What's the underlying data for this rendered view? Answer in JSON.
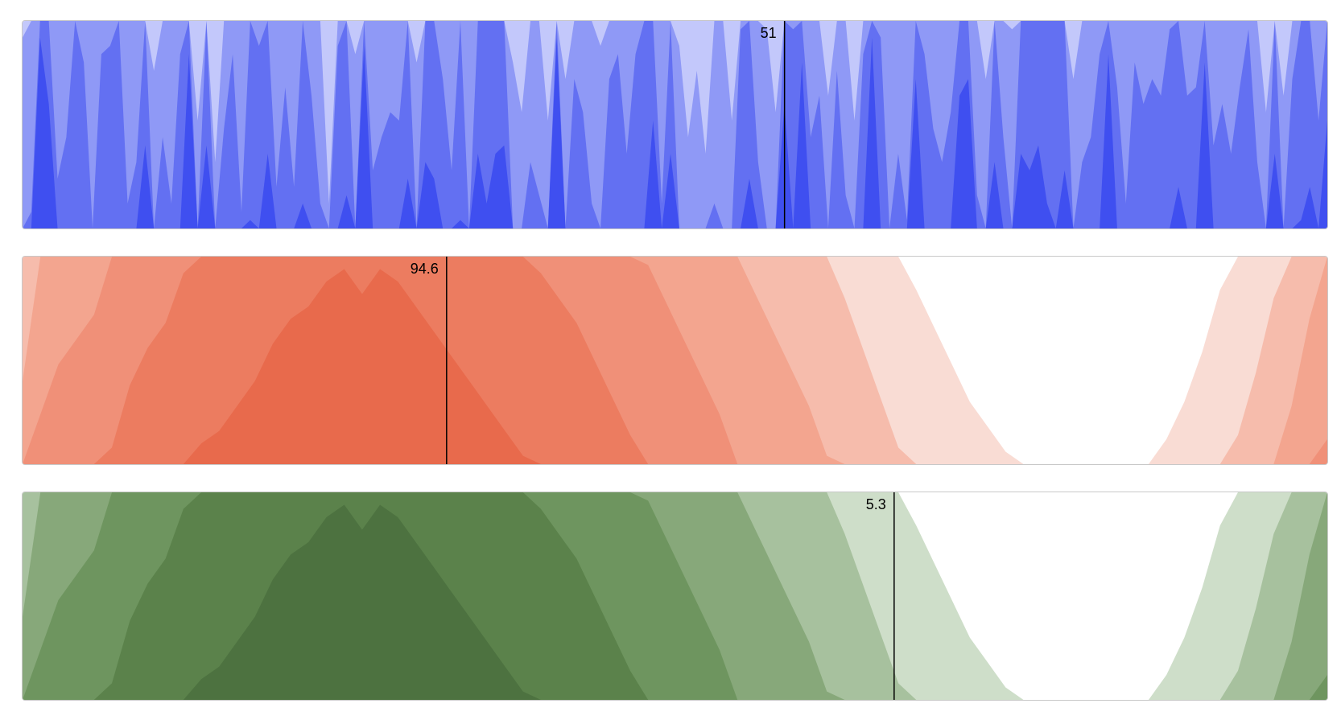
{
  "chart_data": [
    {
      "type": "area",
      "chart_kind": "horizon",
      "bands": 4,
      "color": "#3f4ff0",
      "band_colors": [
        "#c3c8fb",
        "#8f99f6",
        "#6370f2",
        "#3f4ff0"
      ],
      "ylim": [
        0,
        100
      ],
      "rule": {
        "position": 0.584,
        "label": "51"
      },
      "values": [
        48,
        52,
        98,
        90,
        56,
        61,
        75,
        70,
        50,
        71,
        72,
        75,
        53,
        58,
        85,
        44,
        61,
        53,
        71,
        96,
        38,
        85,
        33,
        62,
        71,
        52,
        76,
        72,
        84,
        55,
        67,
        55,
        78,
        66,
        53,
        28,
        72,
        79,
        46,
        97,
        57,
        61,
        64,
        63,
        81,
        45,
        83,
        81,
        68,
        57,
        76,
        50,
        84,
        78,
        84,
        85,
        45,
        39,
        58,
        54,
        38,
        98,
        43,
        68,
        64,
        53,
        47,
        68,
        71,
        59,
        71,
        75,
        88,
        53,
        84,
        47,
        36,
        44,
        34,
        53,
        50,
        38,
        74,
        81,
        58,
        49,
        39,
        90,
        74,
        95,
        61,
        66,
        41,
        69,
        54,
        38,
        71,
        98,
        73,
        50,
        59,
        51,
        93,
        71,
        62,
        58,
        64,
        91,
        93,
        54,
        43,
        83,
        61,
        49,
        84,
        82,
        85,
        78,
        75,
        82,
        43,
        58,
        61,
        71,
        96,
        67,
        53,
        70,
        65,
        68,
        66,
        74,
        80,
        66,
        67,
        95,
        60,
        65,
        59,
        67,
        74,
        58,
        39,
        84,
        41,
        68,
        76,
        80,
        63,
        88
      ]
    },
    {
      "type": "area",
      "chart_kind": "horizon",
      "bands": 6,
      "color": "#eb7a5e",
      "band_colors": [
        "#f9dcd4",
        "#f6bcac",
        "#f3a58f",
        "#f09078",
        "#ec7c60",
        "#e86a4c"
      ],
      "ylim": [
        0,
        100
      ],
      "rule": {
        "position": 0.325,
        "label": "94.6"
      },
      "values": [
        40,
        54,
        58,
        60,
        62,
        68,
        73,
        76,
        78,
        82,
        85,
        86,
        88,
        90,
        93,
        95,
        96,
        98,
        99,
        97,
        99,
        98,
        96,
        94,
        92,
        90,
        88,
        86,
        84,
        82,
        80,
        78,
        75,
        72,
        69,
        66,
        63,
        60,
        57,
        54,
        50,
        47,
        44,
        41,
        38,
        34,
        30,
        26,
        22,
        18,
        14,
        11,
        8,
        5,
        3,
        1,
        0,
        0,
        0,
        0,
        0,
        0,
        0,
        0,
        2,
        5,
        9,
        14,
        19,
        24,
        30,
        38,
        45,
        52
      ]
    },
    {
      "type": "area",
      "chart_kind": "horizon",
      "bands": 6,
      "color": "#5b824b",
      "band_colors": [
        "#cedec9",
        "#a7c19e",
        "#87a87a",
        "#6e955f",
        "#5b824b",
        "#4d7240"
      ],
      "ylim": [
        0,
        100
      ],
      "rule": {
        "position": 0.668,
        "label": "5.3"
      },
      "values": [
        40,
        54,
        58,
        60,
        62,
        68,
        73,
        76,
        78,
        82,
        85,
        86,
        88,
        90,
        93,
        95,
        96,
        98,
        99,
        97,
        99,
        98,
        96,
        94,
        92,
        90,
        88,
        86,
        84,
        82,
        80,
        78,
        75,
        72,
        69,
        66,
        63,
        60,
        57,
        54,
        50,
        47,
        44,
        41,
        38,
        34,
        30,
        26,
        22,
        18,
        14,
        11,
        8,
        5,
        3,
        1,
        0,
        0,
        0,
        0,
        0,
        0,
        0,
        0,
        2,
        5,
        9,
        14,
        19,
        24,
        30,
        38,
        45,
        52
      ]
    }
  ]
}
